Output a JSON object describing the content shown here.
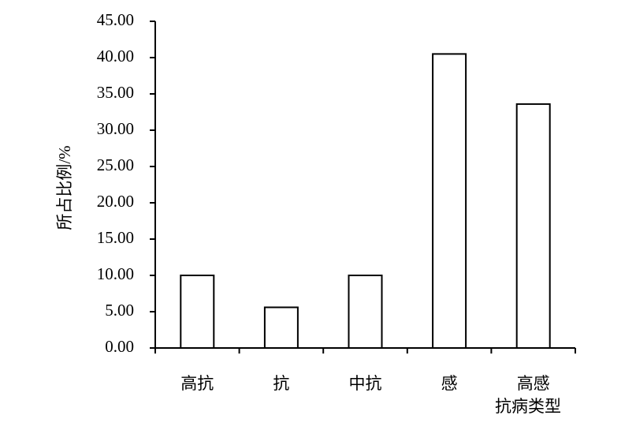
{
  "chart_data": {
    "type": "bar",
    "categories": [
      "高抗",
      "抗",
      "中抗",
      "感",
      "高感"
    ],
    "values": [
      10.0,
      5.6,
      10.0,
      40.5,
      33.6
    ],
    "color": "#ffffff",
    "x_label": "抗病类型",
    "y_label": "所占比例/%",
    "ylim": [
      0,
      45
    ],
    "yticks": [
      {
        "value": 0,
        "label": "0.00"
      },
      {
        "value": 5,
        "label": "5.00"
      },
      {
        "value": 10,
        "label": "10.00"
      },
      {
        "value": 15,
        "label": "15.00"
      },
      {
        "value": 20,
        "label": "20.00"
      },
      {
        "value": 25,
        "label": "25.00"
      },
      {
        "value": 30,
        "label": "30.00"
      },
      {
        "value": 35,
        "label": "35.00"
      },
      {
        "value": 40,
        "label": "40.00"
      },
      {
        "value": 45,
        "label": "45.00"
      }
    ],
    "grid": false
  }
}
